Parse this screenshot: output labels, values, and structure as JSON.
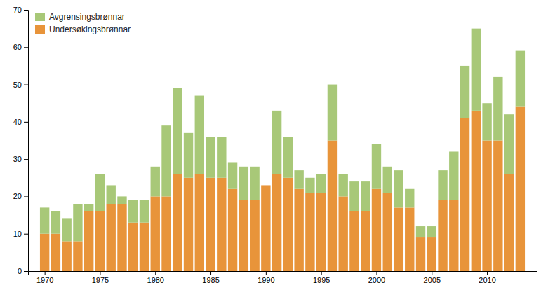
{
  "chart_data": {
    "type": "bar",
    "stacked": true,
    "x": [
      1970,
      1971,
      1972,
      1973,
      1974,
      1975,
      1976,
      1977,
      1978,
      1979,
      1980,
      1981,
      1982,
      1983,
      1984,
      1985,
      1986,
      1987,
      1988,
      1989,
      1990,
      1991,
      1992,
      1993,
      1994,
      1995,
      1996,
      1997,
      1998,
      1999,
      2000,
      2001,
      2002,
      2003,
      2004,
      2005,
      2006,
      2007,
      2008,
      2009,
      2010,
      2011,
      2012,
      2013
    ],
    "series": [
      {
        "name": "Undersøkingsbrønnar",
        "color": "#E8943A",
        "values": [
          10,
          10,
          8,
          8,
          16,
          16,
          18,
          18,
          13,
          13,
          20,
          20,
          26,
          25,
          26,
          25,
          25,
          22,
          19,
          19,
          23,
          26,
          25,
          22,
          21,
          21,
          35,
          20,
          16,
          16,
          22,
          21,
          17,
          17,
          9,
          9,
          19,
          19,
          41,
          43,
          35,
          35,
          26,
          44
        ]
      },
      {
        "name": "Avgrensingsbrønnar",
        "color": "#A8C878",
        "values": [
          7,
          6,
          6,
          10,
          2,
          10,
          5,
          2,
          6,
          6,
          8,
          19,
          23,
          12,
          21,
          11,
          11,
          7,
          9,
          9,
          0,
          17,
          11,
          5,
          4,
          5,
          15,
          6,
          8,
          8,
          12,
          7,
          10,
          5,
          3,
          3,
          8,
          13,
          14,
          22,
          10,
          17,
          16,
          15
        ]
      }
    ],
    "xlim": [
      1968.5,
      2014.5
    ],
    "xticks": [
      1970,
      1975,
      1980,
      1985,
      1990,
      1995,
      2000,
      2005,
      2010
    ],
    "ylim": [
      0,
      70
    ],
    "yticks": [
      0,
      10,
      20,
      30,
      40,
      50,
      60,
      70
    ],
    "grid": false,
    "legend": "upper-left"
  }
}
